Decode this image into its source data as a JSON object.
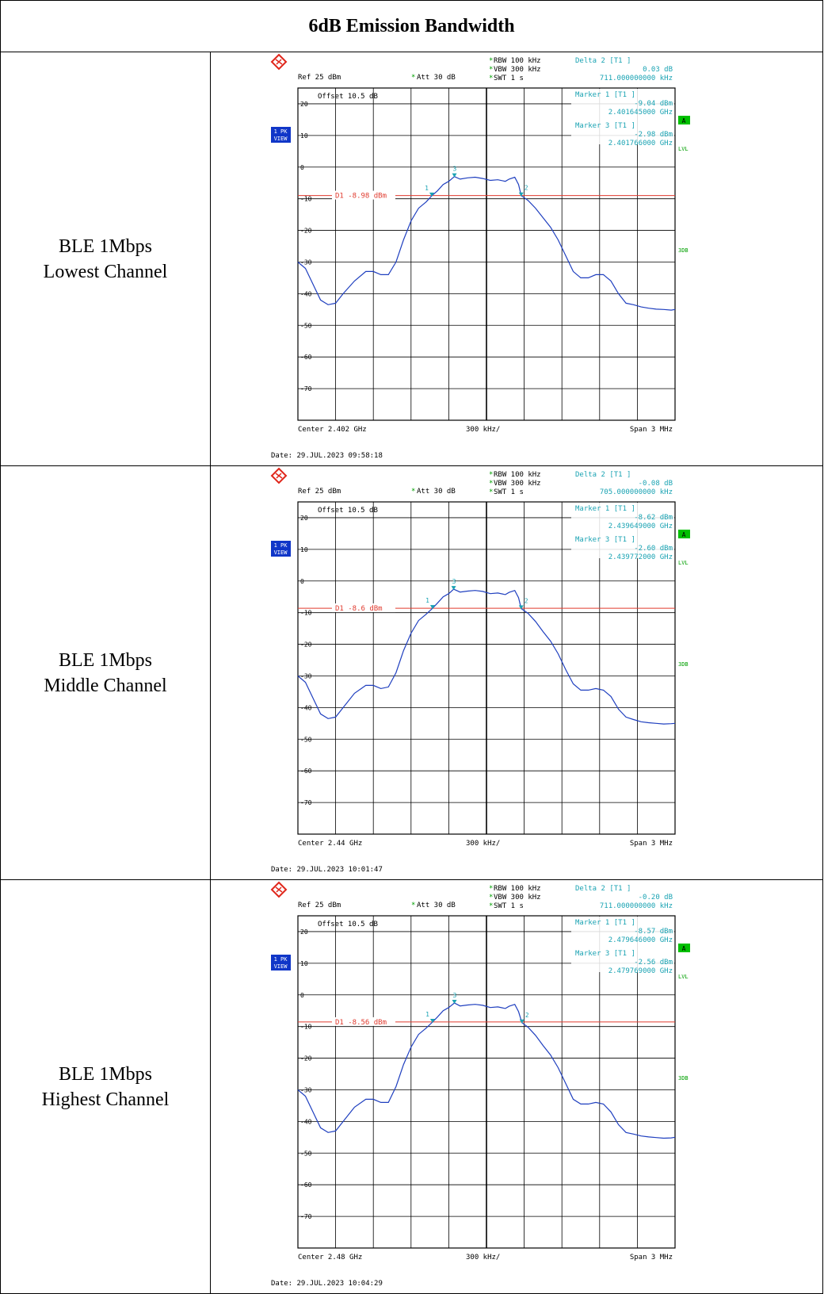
{
  "table": {
    "title": "6dB Emission Bandwidth",
    "rows": [
      {
        "label_line1": "BLE 1Mbps",
        "label_line2": "Lowest Channel"
      },
      {
        "label_line1": "BLE 1Mbps",
        "label_line2": "Middle Channel"
      },
      {
        "label_line1": "BLE 1Mbps",
        "label_line2": "Highest Channel"
      }
    ]
  },
  "colors": {
    "trace": "#1f3fbf",
    "marker": "#1aa3b3",
    "display_line": "#e03a2e",
    "grid": "#000000",
    "side_green": "#00a000",
    "badge_blue": "#1036c8",
    "logo_red": "#e0261b"
  },
  "chart_data": [
    {
      "type": "line",
      "title": "",
      "center": "Center 2.402 GHz",
      "div": "300 kHz/",
      "span": "Span 3 MHz",
      "ref": "Ref 25 dBm",
      "att": "Att 30 dB",
      "offset": "Offset 10.5 dB",
      "rbw": "RBW 100 kHz",
      "vbw": "VBW 300 kHz",
      "swt": "SWT 1 s",
      "delta_title": "Delta 2 [T1 ]",
      "delta_val1": "0.03 dB",
      "delta_val2": "711.000000000 kHz",
      "m1_title": "Marker 1 [T1 ]",
      "m1_val1": "-9.04 dBm",
      "m1_val2": "2.401645000 GHz",
      "m3_title": "Marker 3 [T1 ]",
      "m3_val1": "-2.98 dBm",
      "m3_val2": "2.401766000 GHz",
      "d1_label": "D1 -8.98 dBm",
      "d1_level": -8.98,
      "date": "Date: 29.JUL.2023 09:58:18",
      "badge_top": "1 PK",
      "badge_bottom": "VIEW",
      "side_a": "A",
      "side_lvl": "LVL",
      "side_3db": "3DB",
      "ytick_labels": [
        "20",
        "10",
        "0",
        "-10",
        "-20",
        "-30",
        "-40",
        "-50",
        "-60",
        "-70"
      ],
      "ylim": [
        -80,
        25
      ],
      "xlim": [
        0,
        10
      ],
      "markers": [
        {
          "label": "1",
          "x": 3.55,
          "y": -9.04
        },
        {
          "label": "2",
          "x": 5.92,
          "y": -9.01
        },
        {
          "label": "3",
          "x": 4.15,
          "y": -2.98
        }
      ],
      "x": [
        0,
        0.2,
        0.4,
        0.6,
        0.8,
        1.0,
        1.2,
        1.5,
        1.8,
        2.0,
        2.2,
        2.4,
        2.6,
        2.8,
        3.0,
        3.2,
        3.4,
        3.55,
        3.7,
        3.85,
        4.0,
        4.15,
        4.3,
        4.5,
        4.7,
        4.9,
        5.1,
        5.3,
        5.5,
        5.6,
        5.75,
        5.85,
        5.92,
        6.1,
        6.3,
        6.5,
        6.7,
        6.9,
        7.1,
        7.3,
        7.5,
        7.7,
        7.9,
        8.1,
        8.3,
        8.5,
        8.7,
        8.9,
        9.1,
        9.3,
        9.5,
        9.7,
        9.9,
        10
      ],
      "y": [
        -30,
        -32,
        -37,
        -42,
        -43.5,
        -43,
        -40,
        -36,
        -33,
        -33,
        -34,
        -34,
        -30,
        -23,
        -17,
        -13,
        -11,
        -9.04,
        -7.5,
        -5.5,
        -4.5,
        -2.98,
        -3.8,
        -3.4,
        -3.2,
        -3.6,
        -4.2,
        -4.0,
        -4.5,
        -3.8,
        -3.2,
        -5.5,
        -9.01,
        -10.5,
        -13,
        -16,
        -19,
        -23,
        -28,
        -33,
        -35,
        -35,
        -34,
        -34,
        -36,
        -40,
        -43,
        -43.5,
        -44.2,
        -44.6,
        -44.9,
        -45,
        -45.2,
        -45
      ]
    },
    {
      "type": "line",
      "title": "",
      "center": "Center 2.44 GHz",
      "div": "300 kHz/",
      "span": "Span 3 MHz",
      "ref": "Ref 25 dBm",
      "att": "Att 30 dB",
      "offset": "Offset 10.5 dB",
      "rbw": "RBW 100 kHz",
      "vbw": "VBW 300 kHz",
      "swt": "SWT 1 s",
      "delta_title": "Delta 2 [T1 ]",
      "delta_val1": "-0.08 dB",
      "delta_val2": "705.000000000 kHz",
      "m1_title": "Marker 1 [T1 ]",
      "m1_val1": "-8.62 dBm",
      "m1_val2": "2.439649000 GHz",
      "m3_title": "Marker 3 [T1 ]",
      "m3_val1": "-2.60 dBm",
      "m3_val2": "2.439772000 GHz",
      "d1_label": "D1 -8.6 dBm",
      "d1_level": -8.6,
      "date": "Date: 29.JUL.2023 10:01:47",
      "badge_top": "1 PK",
      "badge_bottom": "VIEW",
      "side_a": "A",
      "side_lvl": "LVL",
      "side_3db": "3DB",
      "ytick_labels": [
        "20",
        "10",
        "0",
        "-10",
        "-20",
        "-30",
        "-40",
        "-50",
        "-60",
        "-70"
      ],
      "ylim": [
        -80,
        25
      ],
      "xlim": [
        0,
        10
      ],
      "markers": [
        {
          "label": "1",
          "x": 3.57,
          "y": -8.62
        },
        {
          "label": "2",
          "x": 5.92,
          "y": -8.7
        },
        {
          "label": "3",
          "x": 4.13,
          "y": -2.6
        }
      ],
      "x": [
        0,
        0.2,
        0.4,
        0.6,
        0.8,
        1.0,
        1.2,
        1.5,
        1.8,
        2.0,
        2.2,
        2.4,
        2.6,
        2.8,
        3.0,
        3.2,
        3.4,
        3.57,
        3.7,
        3.85,
        4.0,
        4.13,
        4.3,
        4.5,
        4.7,
        4.9,
        5.1,
        5.3,
        5.5,
        5.6,
        5.75,
        5.85,
        5.92,
        6.1,
        6.3,
        6.5,
        6.7,
        6.9,
        7.1,
        7.3,
        7.5,
        7.7,
        7.9,
        8.1,
        8.3,
        8.5,
        8.7,
        8.9,
        9.1,
        9.3,
        9.5,
        9.7,
        9.9,
        10
      ],
      "y": [
        -30,
        -32,
        -37,
        -42,
        -43.5,
        -43,
        -40,
        -35.5,
        -33,
        -33,
        -34,
        -33.5,
        -29,
        -22,
        -16.5,
        -12.5,
        -10.5,
        -8.62,
        -7,
        -5,
        -4,
        -2.6,
        -3.5,
        -3.2,
        -3,
        -3.3,
        -4,
        -3.8,
        -4.3,
        -3.6,
        -3,
        -5.3,
        -8.7,
        -10.2,
        -12.8,
        -16,
        -19,
        -23,
        -28,
        -32.5,
        -34.5,
        -34.5,
        -34,
        -34.5,
        -36.5,
        -40.5,
        -43,
        -43.8,
        -44.5,
        -44.8,
        -45,
        -45.2,
        -45.1,
        -45
      ]
    },
    {
      "type": "line",
      "title": "",
      "center": "Center 2.48 GHz",
      "div": "300 kHz/",
      "span": "Span 3 MHz",
      "ref": "Ref 25 dBm",
      "att": "Att 30 dB",
      "offset": "Offset 10.5 dB",
      "rbw": "RBW 100 kHz",
      "vbw": "VBW 300 kHz",
      "swt": "SWT 1 s",
      "delta_title": "Delta 2 [T1 ]",
      "delta_val1": "-0.20 dB",
      "delta_val2": "711.000000000 kHz",
      "m1_title": "Marker 1 [T1 ]",
      "m1_val1": "-8.57 dBm",
      "m1_val2": "2.479646000 GHz",
      "m3_title": "Marker 3 [T1 ]",
      "m3_val1": "-2.56 dBm",
      "m3_val2": "2.479769000 GHz",
      "d1_label": "D1 -8.56 dBm",
      "d1_level": -8.56,
      "date": "Date: 29.JUL.2023 10:04:29",
      "badge_top": "1 PK",
      "badge_bottom": "VIEW",
      "side_a": "A",
      "side_lvl": "LVL",
      "side_3db": "3DB",
      "ytick_labels": [
        "20",
        "10",
        "0",
        "-10",
        "-20",
        "-30",
        "-40",
        "-50",
        "-60",
        "-70"
      ],
      "ylim": [
        -80,
        25
      ],
      "xlim": [
        0,
        10
      ],
      "markers": [
        {
          "label": "1",
          "x": 3.57,
          "y": -8.57
        },
        {
          "label": "2",
          "x": 5.94,
          "y": -8.77
        },
        {
          "label": "3",
          "x": 4.15,
          "y": -2.56
        }
      ],
      "x": [
        0,
        0.2,
        0.4,
        0.6,
        0.8,
        1.0,
        1.2,
        1.5,
        1.8,
        2.0,
        2.2,
        2.4,
        2.6,
        2.8,
        3.0,
        3.2,
        3.4,
        3.57,
        3.7,
        3.85,
        4.0,
        4.15,
        4.3,
        4.5,
        4.7,
        4.9,
        5.1,
        5.3,
        5.5,
        5.6,
        5.75,
        5.85,
        5.94,
        6.1,
        6.3,
        6.5,
        6.7,
        6.9,
        7.1,
        7.3,
        7.5,
        7.7,
        7.9,
        8.1,
        8.3,
        8.5,
        8.7,
        8.9,
        9.1,
        9.3,
        9.5,
        9.7,
        9.9,
        10
      ],
      "y": [
        -30,
        -32,
        -37,
        -42,
        -43.5,
        -43,
        -40,
        -35.5,
        -33,
        -33,
        -34,
        -34,
        -29,
        -22,
        -16.5,
        -12.5,
        -10.5,
        -8.57,
        -7,
        -5,
        -4,
        -2.56,
        -3.5,
        -3.2,
        -3,
        -3.3,
        -4,
        -3.8,
        -4.3,
        -3.6,
        -3,
        -5.3,
        -8.77,
        -10.2,
        -12.8,
        -16,
        -19,
        -23,
        -28,
        -33,
        -34.5,
        -34.5,
        -34,
        -34.5,
        -37,
        -41,
        -43.5,
        -44,
        -44.6,
        -44.9,
        -45.1,
        -45.3,
        -45.2,
        -45
      ]
    }
  ]
}
